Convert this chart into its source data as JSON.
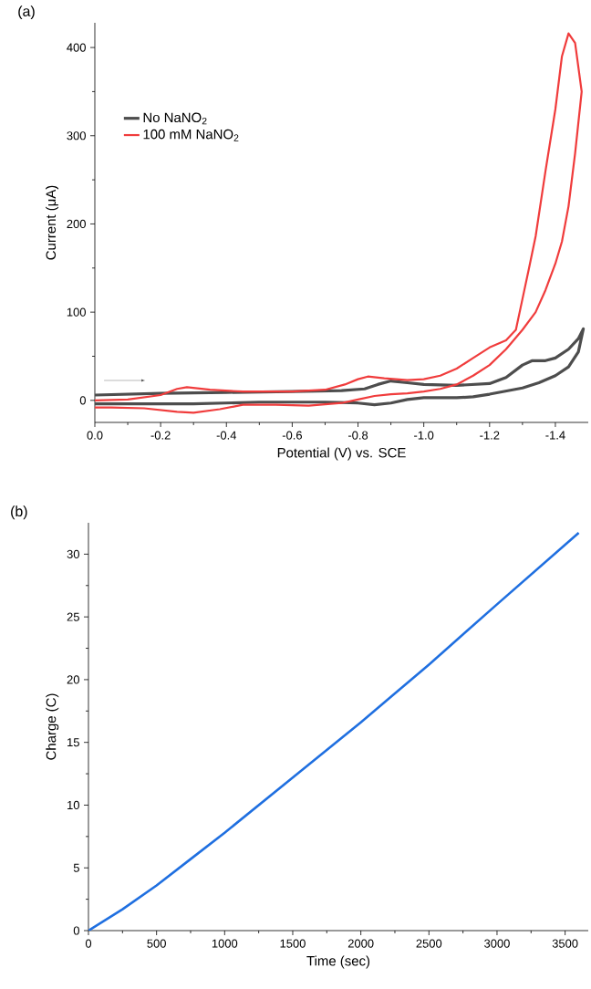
{
  "chart_data": [
    {
      "type": "line",
      "title": "(a)",
      "xlabel": "Potential (V) vs. SCE",
      "ylabel": "Current (μA)",
      "xlim": [
        0,
        -1.5
      ],
      "ylim": [
        -25,
        428
      ],
      "xticks": [
        {
          "value": 0,
          "label": "0.0"
        },
        {
          "value": -0.2,
          "label": "-0.2"
        },
        {
          "value": -0.4,
          "label": "-0.4"
        },
        {
          "value": -0.6,
          "label": "-0.6"
        },
        {
          "value": -0.8,
          "label": "-0.8"
        },
        {
          "value": -1.0,
          "label": "-1.0"
        },
        {
          "value": -1.2,
          "label": "-1.2"
        },
        {
          "value": -1.4,
          "label": "-1.4"
        }
      ],
      "yticks": [
        0,
        100,
        200,
        300,
        400
      ],
      "legend": "left",
      "series": [
        {
          "name": "No NaNO$_{2}$",
          "color": "#4d4d4d",
          "x": [
            0,
            -0.2,
            -0.4,
            -0.6,
            -0.75,
            -0.82,
            -0.86,
            -0.9,
            -0.95,
            -1.0,
            -1.1,
            -1.2,
            -1.25,
            -1.3,
            -1.33,
            -1.37,
            -1.4,
            -1.44,
            -1.47,
            -1.485,
            -1.47,
            -1.44,
            -1.4,
            -1.35,
            -1.3,
            -1.2,
            -1.15,
            -1.1,
            -1.0,
            -0.95,
            -0.9,
            -0.85,
            -0.8,
            -0.7,
            -0.5,
            -0.3,
            -0.1,
            0
          ],
          "values": [
            6,
            8,
            9,
            10,
            11,
            13,
            18,
            22,
            20,
            18,
            17,
            19,
            26,
            40,
            45,
            45,
            48,
            58,
            70,
            81,
            55,
            38,
            28,
            20,
            14,
            7,
            4,
            3,
            3,
            1,
            -3,
            -5,
            -3,
            -2,
            -2,
            -4,
            -4,
            -4
          ]
        },
        {
          "name": "100 mM NaNO$_{2}$",
          "color": "#f03c3c",
          "x": [
            0,
            -0.1,
            -0.2,
            -0.25,
            -0.28,
            -0.35,
            -0.45,
            -0.6,
            -0.7,
            -0.76,
            -0.8,
            -0.83,
            -0.88,
            -0.95,
            -1.0,
            -1.05,
            -1.1,
            -1.15,
            -1.2,
            -1.25,
            -1.28,
            -1.3,
            -1.32,
            -1.34,
            -1.37,
            -1.4,
            -1.42,
            -1.44,
            -1.46,
            -1.48,
            -1.46,
            -1.44,
            -1.42,
            -1.4,
            -1.37,
            -1.34,
            -1.3,
            -1.25,
            -1.2,
            -1.15,
            -1.1,
            -1.05,
            -1.0,
            -0.95,
            -0.9,
            -0.85,
            -0.8,
            -0.75,
            -0.65,
            -0.55,
            -0.45,
            -0.38,
            -0.3,
            -0.25,
            -0.15,
            -0.05,
            0
          ],
          "values": [
            0,
            1,
            6,
            13,
            15,
            12,
            10,
            10,
            12,
            18,
            24,
            27,
            25,
            23,
            24,
            28,
            36,
            48,
            60,
            68,
            80,
            115,
            150,
            186,
            260,
            330,
            390,
            416,
            405,
            350,
            280,
            220,
            180,
            155,
            125,
            100,
            80,
            58,
            40,
            28,
            18,
            13,
            10,
            8,
            7,
            5,
            1,
            -3,
            -6,
            -5,
            -5,
            -10,
            -14,
            -13,
            -9,
            -8,
            -8
          ]
        }
      ]
    },
    {
      "type": "line",
      "title": "(b)",
      "xlabel": "Time (sec)",
      "ylabel": "Charge (C)",
      "xlim": [
        0,
        3670
      ],
      "ylim": [
        0,
        32.5
      ],
      "xticks": [
        0,
        500,
        1000,
        1500,
        2000,
        2500,
        3000,
        3500
      ],
      "yticks": [
        0,
        5,
        10,
        15,
        20,
        25,
        30
      ],
      "series": [
        {
          "color": "#1f6fe0",
          "x": [
            0,
            250,
            500,
            750,
            1000,
            1500,
            2000,
            2500,
            3000,
            3600
          ],
          "values": [
            0,
            1.7,
            3.6,
            5.7,
            7.8,
            12.2,
            16.6,
            21.2,
            26.0,
            31.7
          ]
        }
      ]
    }
  ]
}
